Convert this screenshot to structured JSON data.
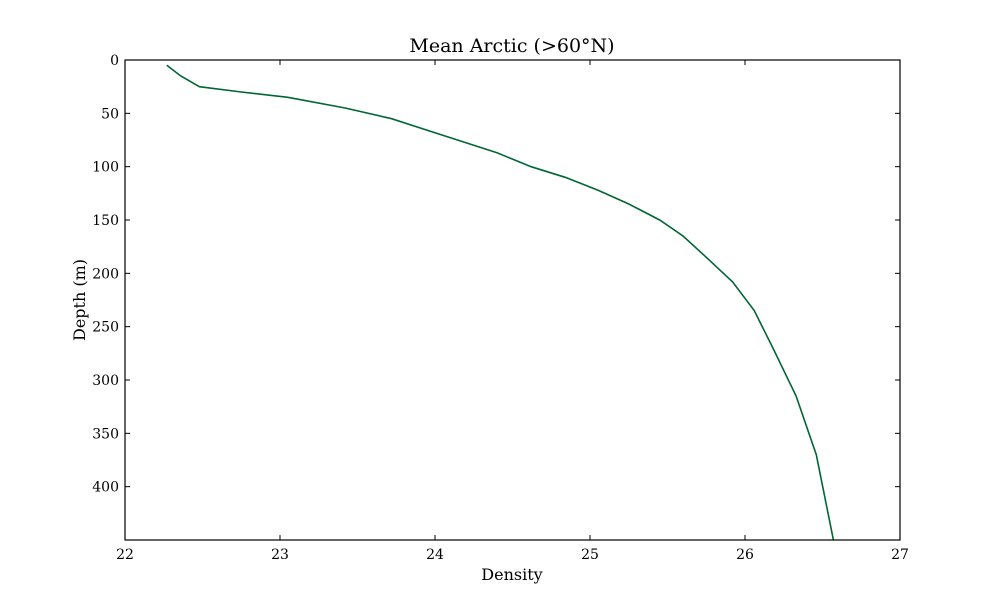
{
  "chart_data": {
    "type": "line",
    "title": "Mean Arctic (>60°N)",
    "xlabel": "Density",
    "ylabel": "Depth (m)",
    "xlim": [
      22,
      27
    ],
    "ylim": [
      0,
      450
    ],
    "y_inverted": true,
    "grid": false,
    "xticks": [
      22,
      23,
      24,
      25,
      26,
      27
    ],
    "yticks": [
      0,
      50,
      100,
      150,
      200,
      250,
      300,
      350,
      400
    ],
    "series": [
      {
        "color": "#006633",
        "points": [
          [
            22.27,
            5
          ],
          [
            22.36,
            15
          ],
          [
            22.48,
            25
          ],
          [
            22.75,
            30
          ],
          [
            23.05,
            35
          ],
          [
            23.42,
            45
          ],
          [
            23.72,
            55
          ],
          [
            24.08,
            72
          ],
          [
            24.4,
            87
          ],
          [
            24.62,
            100
          ],
          [
            24.84,
            110
          ],
          [
            25.05,
            122
          ],
          [
            25.25,
            135
          ],
          [
            25.45,
            150
          ],
          [
            25.6,
            165
          ],
          [
            25.75,
            185
          ],
          [
            25.92,
            208
          ],
          [
            26.06,
            235
          ],
          [
            26.18,
            270
          ],
          [
            26.33,
            315
          ],
          [
            26.46,
            370
          ],
          [
            26.57,
            450
          ]
        ]
      }
    ]
  }
}
